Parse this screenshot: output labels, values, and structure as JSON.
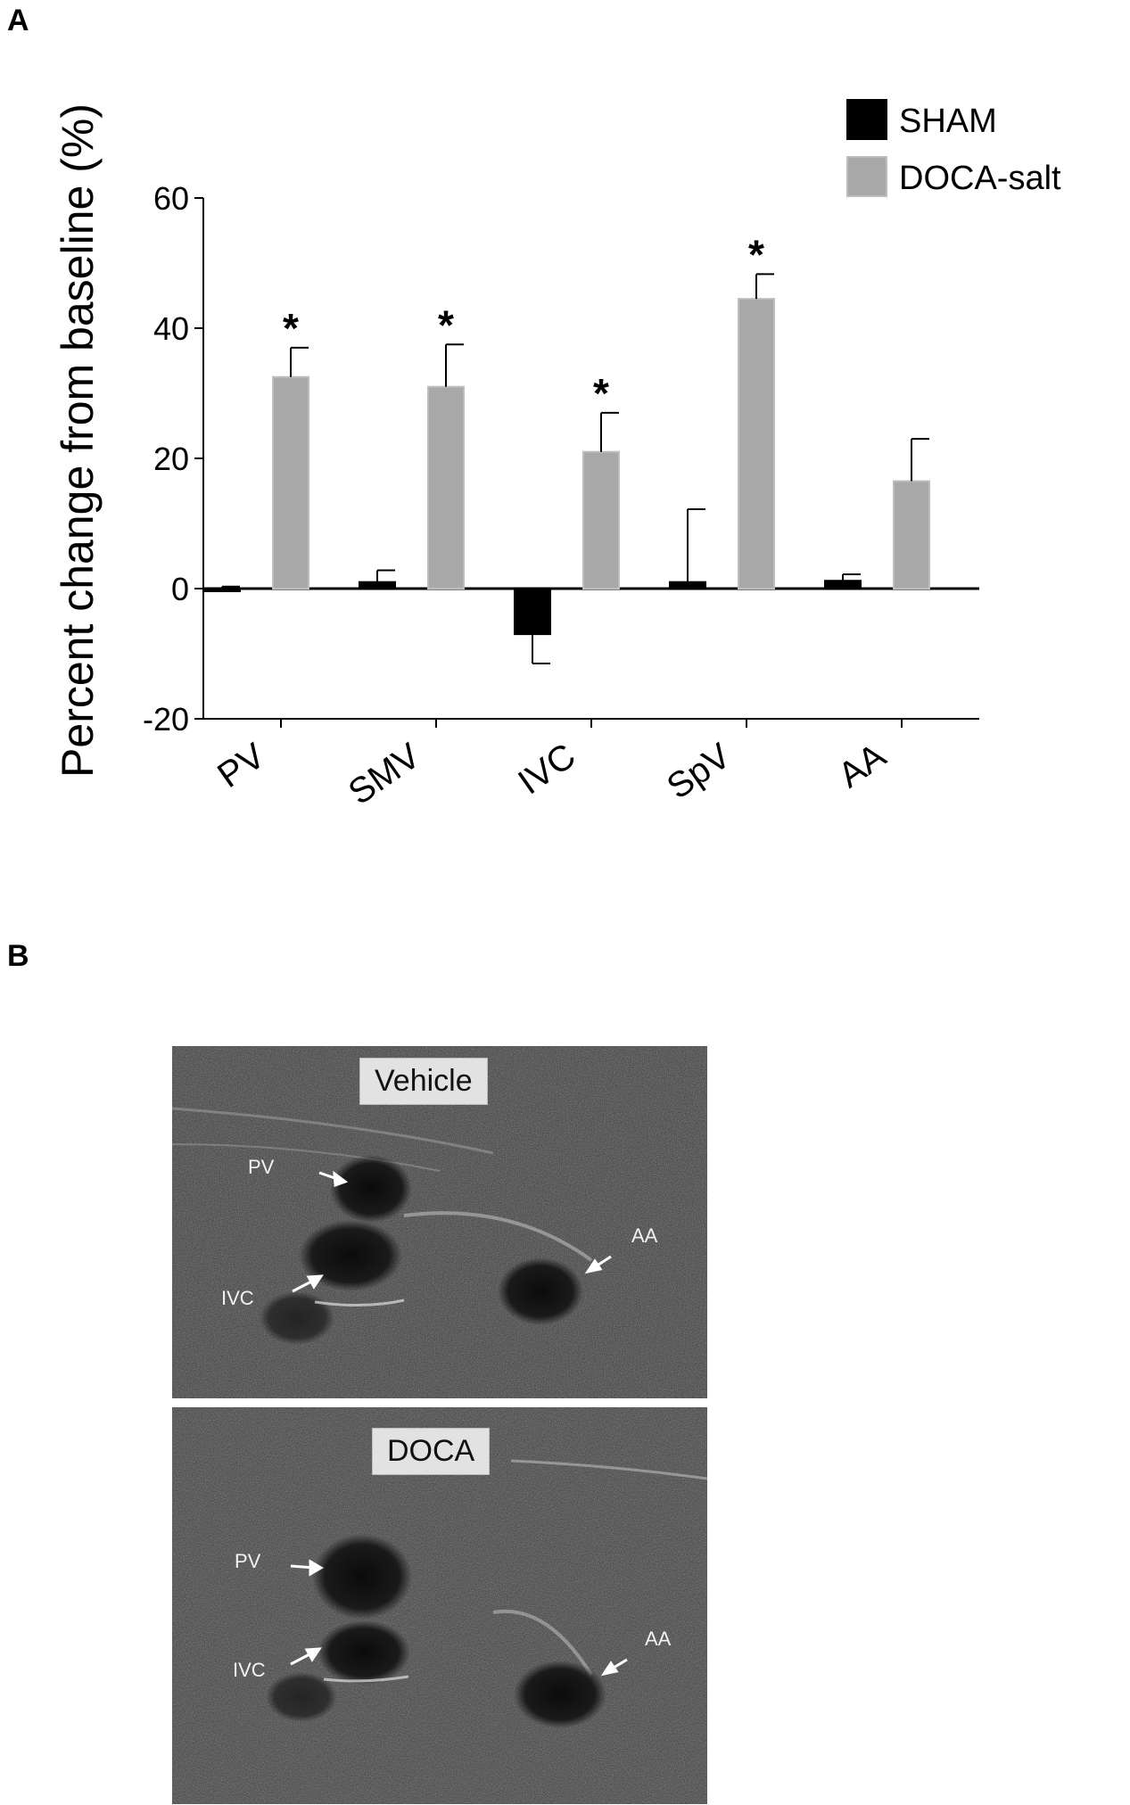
{
  "panels": {
    "a_label": "A",
    "b_label": "B"
  },
  "chart_data": {
    "type": "bar",
    "ylabel": "Percent change from baseline (%)",
    "categories": [
      "PV",
      "SMV",
      "IVC",
      "SpV",
      "AA"
    ],
    "ylim": [
      -20,
      60
    ],
    "yticks": [
      -20,
      0,
      20,
      40,
      60
    ],
    "series": [
      {
        "name": "SHAM",
        "color": "#000000",
        "values": [
          0,
          1,
          -7,
          1,
          1.2
        ],
        "errors": [
          0.3,
          1.8,
          4.5,
          11.2,
          1
        ]
      },
      {
        "name": "DOCA-salt",
        "color": "#a8a8a8",
        "values": [
          32.5,
          31,
          21,
          44.5,
          16.5
        ],
        "errors": [
          4.5,
          6.5,
          6,
          3.8,
          6.5
        ]
      }
    ],
    "significance": [
      "*",
      "*",
      "*",
      "*",
      ""
    ],
    "legend_position": "top-right"
  },
  "images": [
    {
      "title": "Vehicle",
      "labels": {
        "pv": "PV",
        "ivc": "IVC",
        "aa": "AA"
      }
    },
    {
      "title": "DOCA",
      "labels": {
        "pv": "PV",
        "ivc": "IVC",
        "aa": "AA"
      }
    }
  ]
}
